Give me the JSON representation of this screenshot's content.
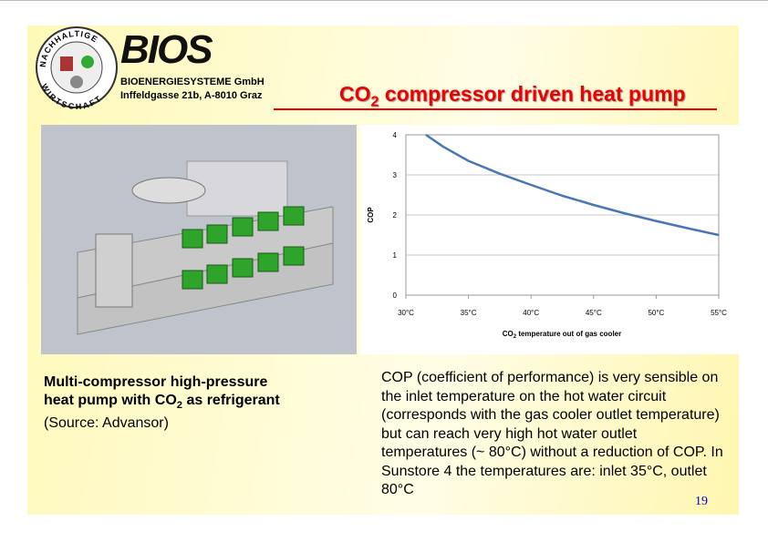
{
  "header": {
    "logo_ring_top": "NACHHALTIGE",
    "logo_ring_bottom": "WIRTSCHAFT",
    "logo_word": "BIOS",
    "company": "BIOENERGIESYSTEME GmbH",
    "address": "Inffeldgasse 21b, A-8010 Graz",
    "title": [
      "CO",
      "2",
      " compressor driven heat pump"
    ]
  },
  "caption": {
    "lines": [
      [
        "Multi-compressor high-pressure"
      ],
      [
        "heat pump with CO",
        "2",
        " as refrigerant"
      ]
    ],
    "source": "(Source: Advansor)"
  },
  "description": "COP (coefficient of performance) is very sensible on the inlet temperature on the hot water circuit (corresponds with the gas cooler outlet temperature) but can reach very high hot water outlet temperatures (~ 80°C) without a reduction of COP. In Sunstore 4 the temperatures are: inlet 35°C, outlet 80°C",
  "page_number": "19",
  "chart_data": {
    "type": "line",
    "x_label": [
      "CO",
      "2",
      " temperature out of gas cooler"
    ],
    "y_label": "COP",
    "color": "#4a76b8",
    "x": [
      31.6,
      33,
      35,
      37.5,
      40,
      42.5,
      45,
      47.5,
      50,
      52.5,
      55
    ],
    "values": [
      4,
      3.7,
      3.35,
      3.03,
      2.75,
      2.48,
      2.25,
      2.04,
      1.85,
      1.67,
      1.5
    ],
    "xlim": [
      30,
      55
    ],
    "xticks": [
      {
        "value": 30,
        "label": "30°C"
      },
      {
        "value": 35,
        "label": "35°C"
      },
      {
        "value": 40,
        "label": "40°C"
      },
      {
        "value": 45,
        "label": "45°C"
      },
      {
        "value": 50,
        "label": "50°C"
      },
      {
        "value": 55,
        "label": "55°C"
      }
    ],
    "ylim": [
      0,
      4
    ],
    "yticks": [
      0,
      1,
      2,
      3,
      4
    ],
    "grid": true
  }
}
